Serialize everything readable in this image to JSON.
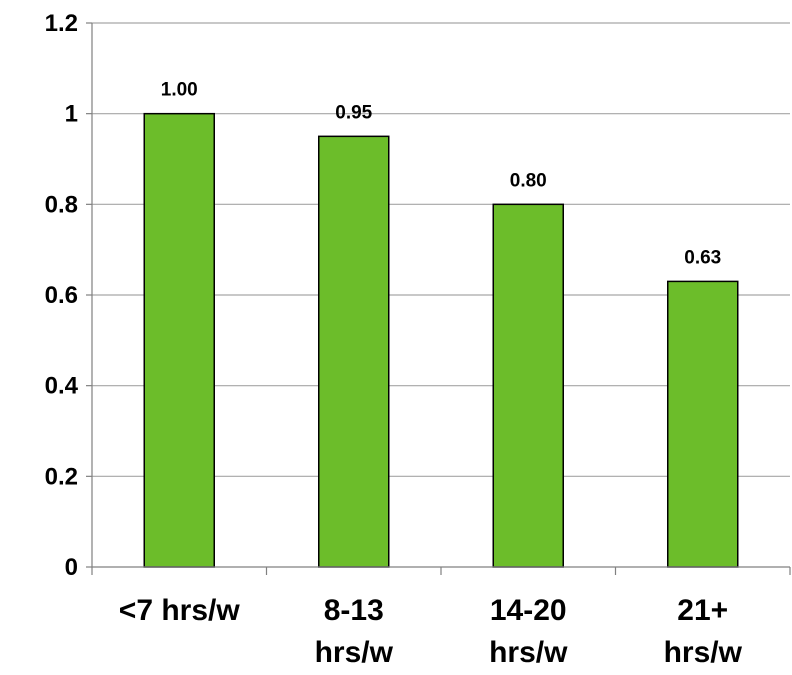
{
  "chart_data": {
    "type": "bar",
    "categories": [
      [
        "<7 hrs/w"
      ],
      [
        "8-13",
        "hrs/w"
      ],
      [
        "14-20",
        "hrs/w"
      ],
      [
        "21+",
        "hrs/w"
      ]
    ],
    "values": [
      1.0,
      0.95,
      0.8,
      0.63
    ],
    "data_labels": [
      "1.00",
      "0.95",
      "0.80",
      "0.63"
    ],
    "title": "",
    "xlabel": "",
    "ylabel": "",
    "ylim": [
      0,
      1.2
    ],
    "yticks": [
      "0",
      "0.2",
      "0.4",
      "0.6",
      "0.8",
      "1",
      "1.2"
    ],
    "grid": true,
    "bar_color": "#6cbd2a",
    "bar_edge_color": "#000000",
    "grid_color": "#a6a6a6"
  }
}
